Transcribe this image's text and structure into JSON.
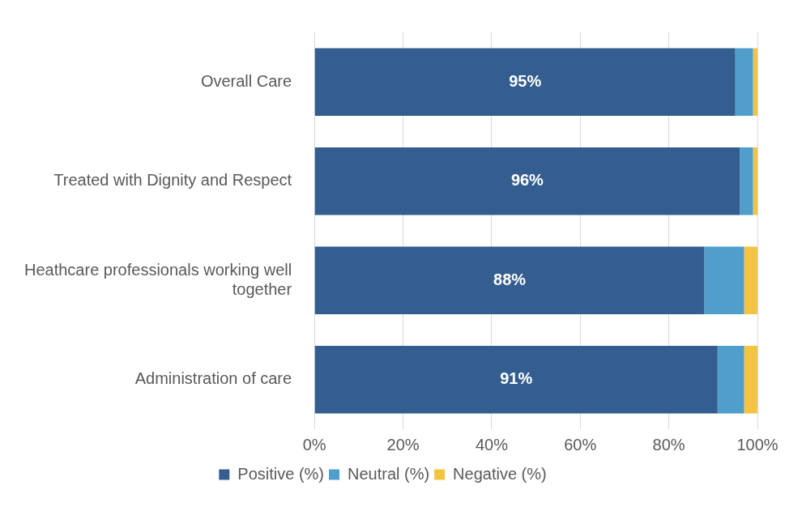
{
  "chart_data": {
    "type": "bar",
    "orientation": "horizontal",
    "stacked": true,
    "categories": [
      "Overall Care",
      "Treated with Dignity and Respect",
      "Heathcare professionals working well together",
      "Administration of care"
    ],
    "series": [
      {
        "name": "Positive (%)",
        "color": "#345e8f",
        "values": [
          95,
          96,
          88,
          91
        ],
        "value_labels": [
          "95%",
          "96%",
          "88%",
          "91%"
        ]
      },
      {
        "name": "Neutral (%)",
        "color": "#4f9ecc",
        "values": [
          4,
          3,
          9,
          6
        ]
      },
      {
        "name": "Negative (%)",
        "color": "#f3c443",
        "values": [
          1,
          1,
          3,
          3
        ]
      }
    ],
    "xlim": [
      0,
      100
    ],
    "xticks": [
      {
        "value": 0,
        "label": "0%"
      },
      {
        "value": 20,
        "label": "20%"
      },
      {
        "value": 40,
        "label": "40%"
      },
      {
        "value": 60,
        "label": "60%"
      },
      {
        "value": 80,
        "label": "80%"
      },
      {
        "value": 100,
        "label": "100%"
      }
    ],
    "grid": true,
    "legend": "bottom",
    "data_labels": true
  }
}
